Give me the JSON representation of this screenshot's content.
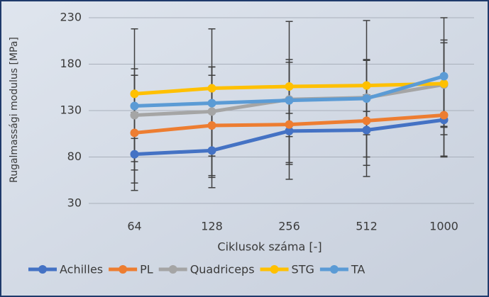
{
  "chart_data": {
    "type": "line",
    "x_label": "Ciklusok száma [-]",
    "y_label": "Rugalmassági modulus [MPa]",
    "categories": [
      "64",
      "128",
      "256",
      "512",
      "1000"
    ],
    "ylim": [
      30,
      230
    ],
    "yticks": [
      30,
      80,
      130,
      180,
      230
    ],
    "grid": true,
    "error_color": "#404040",
    "series": [
      {
        "name": "Achilles",
        "color": "#4472c4",
        "values": [
          83,
          87,
          108,
          109,
          120
        ],
        "errors": [
          17,
          40,
          36,
          38,
          40
        ]
      },
      {
        "name": "PL",
        "color": "#ed7d31",
        "values": [
          106,
          114,
          115,
          119,
          125
        ],
        "errors": [
          62,
          54,
          41,
          39,
          44
        ]
      },
      {
        "name": "Quadriceps",
        "color": "#a5a5a5",
        "values": [
          125,
          129,
          142,
          144,
          158
        ],
        "errors": [
          50,
          48,
          40,
          40,
          45
        ]
      },
      {
        "name": "STG",
        "color": "#ffc000",
        "values": [
          148,
          154,
          156,
          157,
          159
        ],
        "errors": [
          20,
          23,
          29,
          28,
          47
        ]
      },
      {
        "name": "TA",
        "color": "#5b9bd5",
        "values": [
          135,
          138,
          141,
          143,
          167
        ],
        "errors": [
          83,
          80,
          85,
          84,
          63
        ]
      }
    ]
  }
}
